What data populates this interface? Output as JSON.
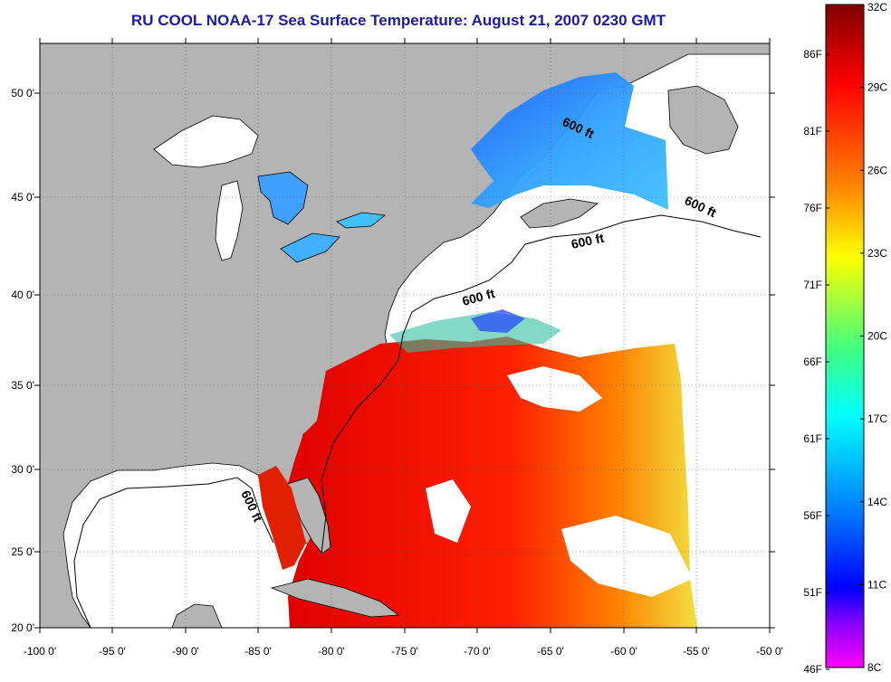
{
  "title": "RU COOL  NOAA-17  Sea Surface Temperature:  August 21, 2007 0230 GMT",
  "map": {
    "lon_ticks": [
      "-100 0'",
      "-95 0'",
      "-90 0'",
      "-85 0'",
      "-80 0'",
      "-75 0'",
      "-70 0'",
      "-65 0'",
      "-60 0'",
      "-55 0'",
      "-50 0'"
    ],
    "lat_ticks": [
      "20 0'",
      "25 0'",
      "30 0'",
      "35 0'",
      "40 0'",
      "45 0'",
      "50 0'"
    ],
    "contour_label": "600 ft",
    "land_color": "#b4b4b4",
    "cloud_color": "#ffffff"
  },
  "colorbar": {
    "celsius_ticks": [
      "32C",
      "29C",
      "26C",
      "23C",
      "20C",
      "17C",
      "14C",
      "11C",
      "8C"
    ],
    "fahrenheit_ticks": [
      "86F",
      "81F",
      "76F",
      "71F",
      "66F",
      "61F",
      "56F",
      "51F",
      "46F"
    ],
    "gradient_colors": [
      "#800000",
      "#ff0000",
      "#ff8000",
      "#ffff00",
      "#80ff80",
      "#00ffff",
      "#0080ff",
      "#0000ff",
      "#8000ff",
      "#ff00ff"
    ]
  }
}
